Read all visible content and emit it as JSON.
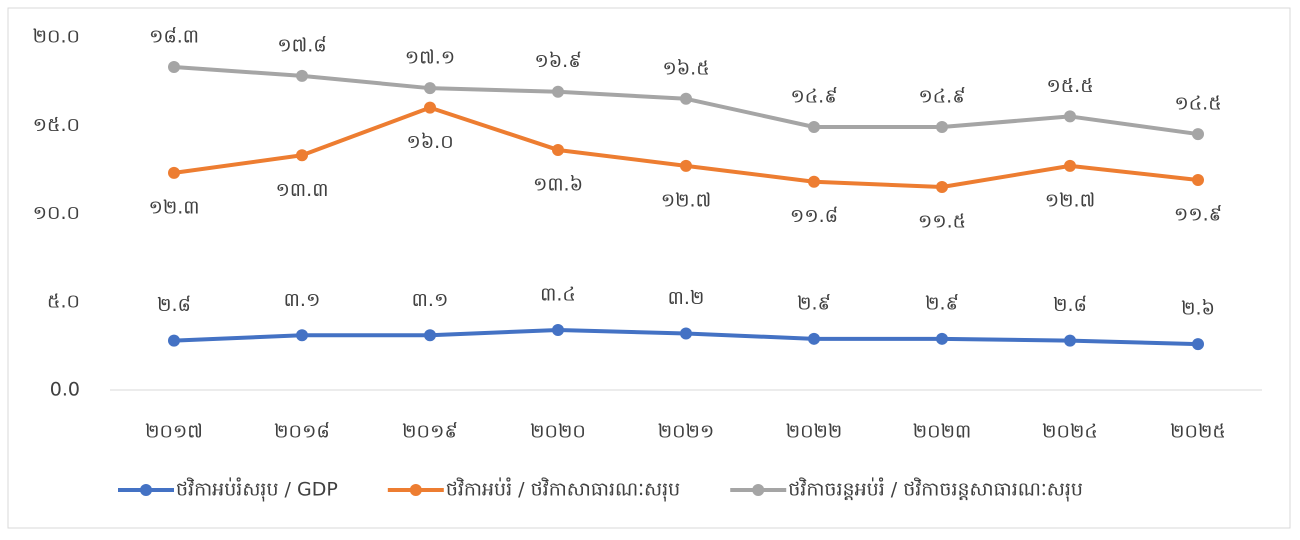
{
  "chart_data": {
    "type": "line",
    "categories": [
      "២០១៧",
      "២០១៨",
      "២០១៩",
      "២០២០",
      "២០២១",
      "២០២២",
      "២០២៣",
      "២០២៤",
      "២០២៥"
    ],
    "series": [
      {
        "name": "ថវិកាអប់រំសរុប / GDP",
        "color": "#4472c4",
        "values": [
          2.8,
          3.1,
          3.1,
          3.4,
          3.2,
          2.9,
          2.9,
          2.8,
          2.6
        ],
        "value_labels": [
          "២.៨",
          "៣.១",
          "៣.១",
          "៣.៤",
          "៣.២",
          "២.៩",
          "២.៩",
          "២.៨",
          "២.៦"
        ]
      },
      {
        "name": "ថវិកាអប់រំ / ថវិកាសាធារណៈសរុប",
        "color": "#ed7d31",
        "values": [
          12.3,
          13.3,
          16.0,
          13.6,
          12.7,
          11.8,
          11.5,
          12.7,
          11.9
        ],
        "value_labels": [
          "១២.៣",
          "១៣.៣",
          "១៦.០",
          "១៣.៦",
          "១២.៧",
          "១១.៨",
          "១១.៥",
          "១២.៧",
          "១១.៩"
        ]
      },
      {
        "name": "ថវិកាចរន្តអប់រំ / ថវិកាចរន្តសាធារណៈសរុប",
        "color": "#a5a5a5",
        "values": [
          18.3,
          17.8,
          17.1,
          16.9,
          16.5,
          14.9,
          14.9,
          15.5,
          14.5
        ],
        "value_labels": [
          "១៨.៣",
          "១៧.៨",
          "១៧.១",
          "១៦.៩",
          "១៦.៥",
          "១៤.៩",
          "១៤.៩",
          "១៥.៥",
          "១៤.៥"
        ]
      }
    ],
    "ylim": [
      0,
      20
    ],
    "yticks": [
      {
        "value": 0,
        "label": "0.0"
      },
      {
        "value": 5,
        "label": "៥.០"
      },
      {
        "value": 10,
        "label": "១០.០"
      },
      {
        "value": 15,
        "label": "១៥.០"
      },
      {
        "value": 20,
        "label": "២០.០"
      }
    ],
    "grid": false,
    "legend": "bottom"
  }
}
